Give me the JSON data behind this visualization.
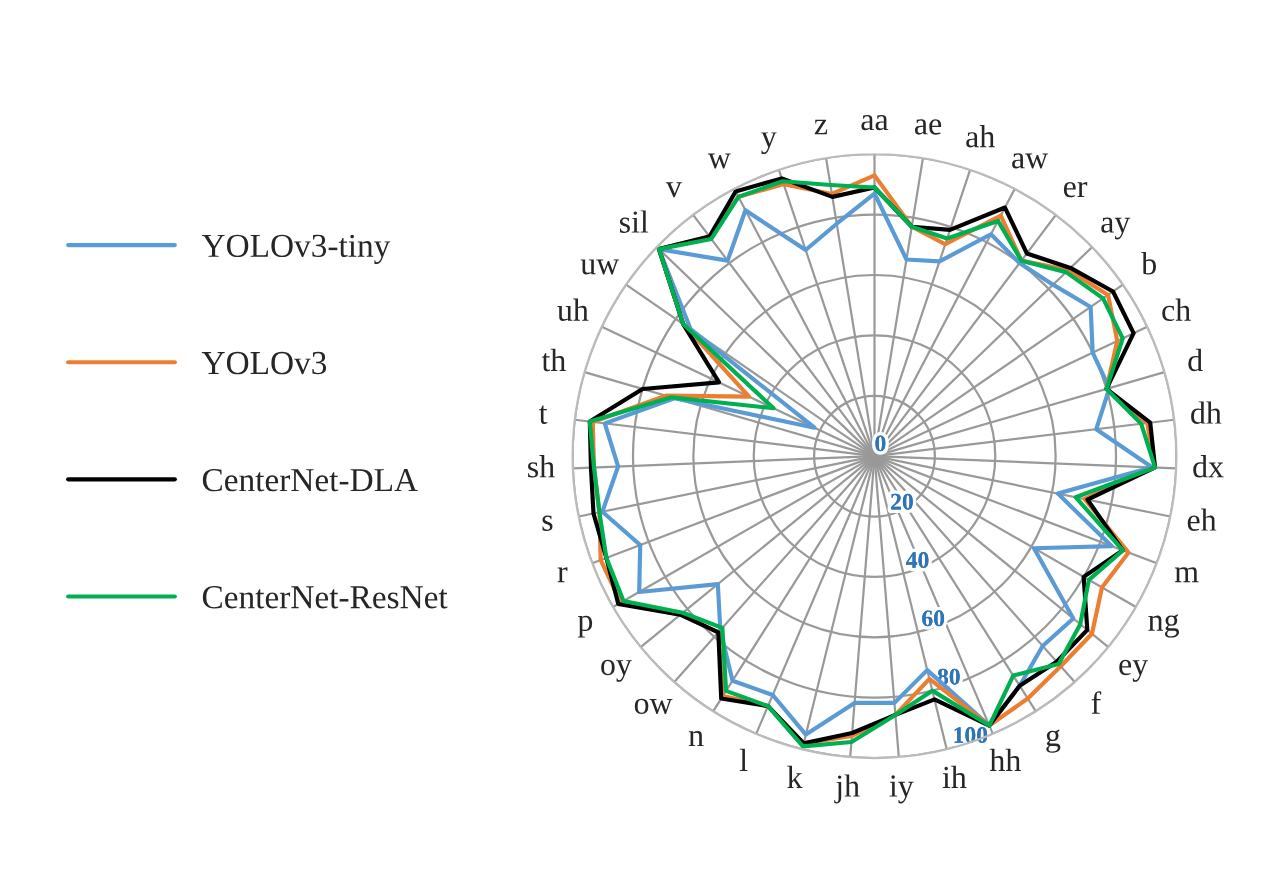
{
  "chart_data": {
    "type": "radar",
    "categories": [
      "aa",
      "ae",
      "ah",
      "aw",
      "er",
      "ay",
      "b",
      "ch",
      "d",
      "dh",
      "dx",
      "eh",
      "m",
      "ng",
      "ey",
      "f",
      "g",
      "hh",
      "ih",
      "iy",
      "jh",
      "k",
      "l",
      "n",
      "ow",
      "oy",
      "p",
      "r",
      "s",
      "sh",
      "t",
      "th",
      "uh",
      "uw",
      "sil",
      "v",
      "w",
      "y",
      "z"
    ],
    "series": [
      {
        "name": "YOLOv3-tiny",
        "color": "#5b9bd5",
        "values": [
          87,
          66,
          68,
          83,
          80,
          82,
          87,
          80,
          81,
          74,
          92,
          62,
          84,
          61,
          85,
          84,
          90,
          97,
          73,
          82,
          82,
          95,
          86,
          88,
          77,
          67,
          90,
          83,
          92,
          85,
          90,
          69,
          22,
          74,
          99,
          81,
          92,
          72,
          78
        ]
      },
      {
        "name": "YOLOv3",
        "color": "#ed7d31",
        "values": [
          93,
          77,
          74,
          90,
          81,
          89,
          94,
          89,
          80,
          91,
          93,
          71,
          90,
          87,
          93,
          93,
          95,
          97,
          76,
          86,
          93,
          98,
          90,
          94,
          78,
          83,
          97,
          97,
          93,
          93,
          94,
          72,
          46,
          77,
          99,
          91,
          97,
          95,
          88
        ]
      },
      {
        "name": "CenterNet-DLA",
        "color": "#000000",
        "values": [
          89,
          77,
          79,
          93,
          84,
          90,
          96,
          95,
          80,
          92,
          93,
          72,
          88,
          80,
          91,
          91,
          90,
          97,
          83,
          86,
          92,
          98,
          90,
          95,
          78,
          83,
          98,
          95,
          95,
          94,
          95,
          80,
          57,
          77,
          99,
          91,
          99,
          97,
          87
        ]
      },
      {
        "name": "CenterNet-ResNet",
        "color": "#00b050",
        "values": [
          89,
          77,
          76,
          88,
          81,
          88,
          92,
          91,
          80,
          89,
          93,
          68,
          88,
          82,
          88,
          92,
          86,
          97,
          80,
          86,
          95,
          99,
          90,
          92,
          76,
          82,
          96,
          95,
          93,
          93,
          95,
          70,
          37,
          77,
          99,
          90,
          97,
          96,
          91
        ]
      }
    ],
    "ylim": [
      0,
      100
    ],
    "yticks": [
      0,
      20,
      40,
      60,
      80,
      100
    ],
    "grid": true,
    "legend": "left"
  }
}
